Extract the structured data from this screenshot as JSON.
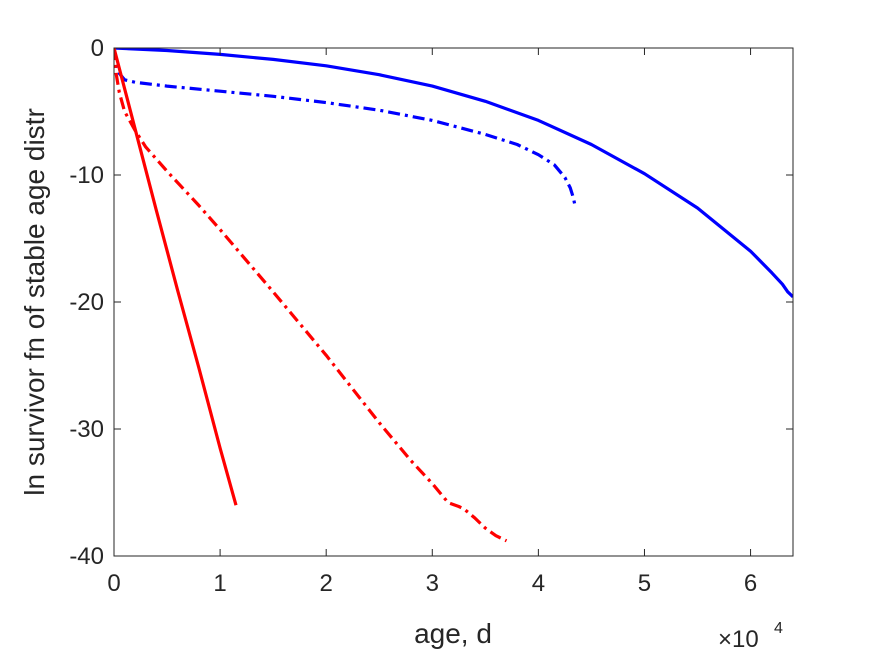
{
  "chart_data": {
    "type": "line",
    "title": "",
    "xlabel": "age, d",
    "ylabel": "ln survivor fn of stable age distr",
    "x_exponent_label": {
      "base": "×10",
      "exponent": "4"
    },
    "xlim": [
      0,
      64000
    ],
    "ylim": [
      -40,
      0
    ],
    "xticks": [
      0,
      10000,
      20000,
      30000,
      40000,
      50000,
      60000
    ],
    "xtick_labels": [
      "0",
      "1",
      "2",
      "3",
      "4",
      "5",
      "6"
    ],
    "yticks": [
      0,
      -10,
      -20,
      -30,
      -40
    ],
    "ytick_labels": [
      "0",
      "-10",
      "-20",
      "-30",
      "-40"
    ],
    "grid": false,
    "box": true,
    "series": [
      {
        "color": "#0000ff",
        "style": "solid",
        "x": [
          0,
          5000,
          10000,
          15000,
          20000,
          25000,
          30000,
          35000,
          40000,
          45000,
          50000,
          55000,
          60000,
          62000,
          63000,
          63500,
          64000
        ],
        "y": [
          0,
          -0.2,
          -0.5,
          -0.9,
          -1.4,
          -2.1,
          -3.0,
          -4.2,
          -5.7,
          -7.6,
          -9.9,
          -12.6,
          -16.0,
          -17.7,
          -18.6,
          -19.2,
          -19.6
        ]
      },
      {
        "color": "#0000ff",
        "style": "dashdot",
        "x": [
          0,
          200,
          500,
          1000,
          2000,
          5000,
          10000,
          15000,
          20000,
          25000,
          30000,
          35000,
          38000,
          40000,
          41500,
          42500,
          43000,
          43300,
          43500
        ],
        "y": [
          0,
          -1.2,
          -2.0,
          -2.5,
          -2.7,
          -3.0,
          -3.4,
          -3.8,
          -4.3,
          -4.9,
          -5.7,
          -6.8,
          -7.6,
          -8.4,
          -9.2,
          -10.2,
          -11.0,
          -11.8,
          -12.6
        ]
      },
      {
        "color": "#ff0000",
        "style": "solid",
        "x": [
          0,
          2000,
          4000,
          6000,
          8000,
          10000,
          11500
        ],
        "y": [
          0,
          -6.4,
          -12.8,
          -19.1,
          -25.2,
          -31.5,
          -36.0
        ]
      },
      {
        "color": "#ff0000",
        "style": "dashdot",
        "x": [
          0,
          200,
          500,
          1000,
          2000,
          3000,
          5000,
          8000,
          10000,
          15000,
          20000,
          25000,
          28000,
          30000,
          31500,
          32500,
          33000,
          34000,
          35000,
          36000,
          37000
        ],
        "y": [
          0,
          -2.0,
          -3.5,
          -5.0,
          -6.5,
          -7.8,
          -9.7,
          -12.4,
          -14.3,
          -19.2,
          -24.2,
          -29.5,
          -32.5,
          -34.3,
          -35.8,
          -36.1,
          -36.3,
          -37.0,
          -37.8,
          -38.4,
          -38.8
        ]
      }
    ]
  }
}
